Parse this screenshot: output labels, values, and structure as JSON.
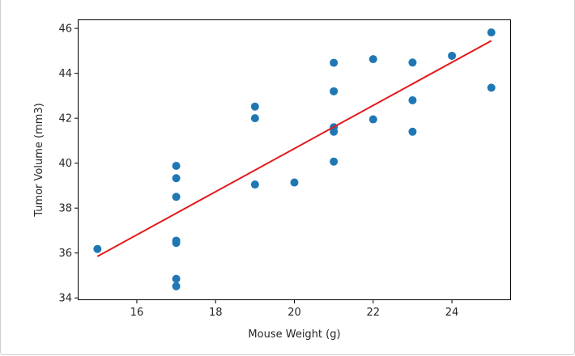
{
  "chart_data": {
    "type": "scatter",
    "title": "",
    "xlabel": "Mouse Weight (g)",
    "ylabel": "Tumor Volume (mm3)",
    "xlim": [
      14.5,
      25.5
    ],
    "ylim": [
      33.9,
      46.4
    ],
    "xticks": [
      16,
      18,
      20,
      22,
      24
    ],
    "yticks": [
      34,
      36,
      38,
      40,
      42,
      44,
      46
    ],
    "grid": false,
    "series": [
      {
        "kind": "scatter",
        "color": "#1f77b4",
        "points": [
          [
            15,
            36.18
          ],
          [
            17,
            34.52
          ],
          [
            17,
            34.85
          ],
          [
            17,
            36.45
          ],
          [
            17,
            36.55
          ],
          [
            17,
            38.5
          ],
          [
            17,
            39.33
          ],
          [
            17,
            39.88
          ],
          [
            19,
            39.05
          ],
          [
            19,
            42.0
          ],
          [
            19,
            42.52
          ],
          [
            20,
            39.14
          ],
          [
            21,
            40.07
          ],
          [
            21,
            41.4
          ],
          [
            21,
            41.6
          ],
          [
            21,
            43.2
          ],
          [
            21,
            44.47
          ],
          [
            22,
            41.95
          ],
          [
            22,
            44.63
          ],
          [
            23,
            41.4
          ],
          [
            23,
            42.8
          ],
          [
            23,
            44.48
          ],
          [
            24,
            44.78
          ],
          [
            25,
            43.36
          ],
          [
            25,
            45.82
          ]
        ]
      },
      {
        "kind": "line",
        "color": "#e41a1c",
        "points": [
          [
            15,
            35.85
          ],
          [
            25,
            45.45
          ]
        ]
      }
    ]
  }
}
